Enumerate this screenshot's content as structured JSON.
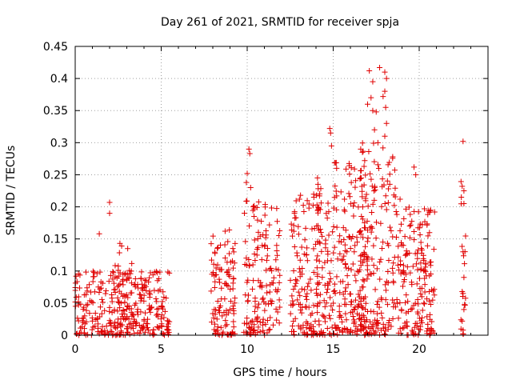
{
  "chart_data": {
    "type": "scatter",
    "title": "Day 261 of 2021, SRMTID for receiver spja",
    "xlabel": "GPS time / hours",
    "ylabel": "SRMTID / TECUs",
    "xlim": [
      0,
      24
    ],
    "ylim": [
      0,
      0.45
    ],
    "x_ticks": [
      0,
      5,
      10,
      15,
      20
    ],
    "x_tick_labels": [
      "0",
      "5",
      "10",
      "15",
      "20"
    ],
    "y_ticks": [
      0,
      0.05,
      0.1,
      0.15,
      0.2,
      0.25,
      0.3,
      0.35,
      0.4,
      0.45
    ],
    "y_tick_labels": [
      "0",
      "0.05",
      "0.1",
      "0.15",
      "0.2",
      "0.25",
      "0.3",
      "0.35",
      "0.4",
      "0.45"
    ],
    "grid": true,
    "marker": "+",
    "color": "#e00000",
    "clusters": [
      {
        "x": [
          0,
          5.5
        ],
        "ymax": 0.1,
        "n": 300
      },
      {
        "x": [
          2.0,
          3.5
        ],
        "ymax": 0.145,
        "n": 55
      },
      {
        "x": [
          7.9,
          9.3
        ],
        "ymax": 0.165,
        "n": 110
      },
      {
        "x": [
          9.8,
          11.9
        ],
        "ymax": 0.21,
        "n": 150
      },
      {
        "x": [
          12.5,
          14.2
        ],
        "ymax": 0.22,
        "n": 130
      },
      {
        "x": [
          14.0,
          17.0
        ],
        "ymax": 0.27,
        "n": 260
      },
      {
        "x": [
          16.5,
          19.0
        ],
        "ymax": 0.3,
        "n": 190
      },
      {
        "x": [
          18.8,
          20.9
        ],
        "ymax": 0.2,
        "n": 160
      },
      {
        "x": [
          22.4,
          22.7
        ],
        "ymax": 0.24,
        "n": 16
      }
    ],
    "highlights": [
      {
        "x": 0.05,
        "y": 0.092
      },
      {
        "x": 1.4,
        "y": 0.158
      },
      {
        "x": 2.0,
        "y": 0.207
      },
      {
        "x": 2.0,
        "y": 0.19
      },
      {
        "x": 2.6,
        "y": 0.143
      },
      {
        "x": 10.1,
        "y": 0.29
      },
      {
        "x": 10.15,
        "y": 0.283
      },
      {
        "x": 10.0,
        "y": 0.252
      },
      {
        "x": 9.95,
        "y": 0.238
      },
      {
        "x": 10.2,
        "y": 0.23
      },
      {
        "x": 10.35,
        "y": 0.2
      },
      {
        "x": 13.1,
        "y": 0.218
      },
      {
        "x": 14.8,
        "y": 0.322
      },
      {
        "x": 14.85,
        "y": 0.315
      },
      {
        "x": 14.9,
        "y": 0.295
      },
      {
        "x": 15.2,
        "y": 0.26
      },
      {
        "x": 16.6,
        "y": 0.29
      },
      {
        "x": 16.7,
        "y": 0.285
      },
      {
        "x": 17.1,
        "y": 0.412
      },
      {
        "x": 17.3,
        "y": 0.395
      },
      {
        "x": 17.2,
        "y": 0.37
      },
      {
        "x": 17.0,
        "y": 0.36
      },
      {
        "x": 17.5,
        "y": 0.348
      },
      {
        "x": 17.4,
        "y": 0.32
      },
      {
        "x": 17.6,
        "y": 0.3
      },
      {
        "x": 17.7,
        "y": 0.417
      },
      {
        "x": 18.0,
        "y": 0.41
      },
      {
        "x": 18.1,
        "y": 0.4
      },
      {
        "x": 18.0,
        "y": 0.38
      },
      {
        "x": 17.9,
        "y": 0.372
      },
      {
        "x": 18.05,
        "y": 0.355
      },
      {
        "x": 18.1,
        "y": 0.33
      },
      {
        "x": 18.0,
        "y": 0.31
      },
      {
        "x": 17.3,
        "y": 0.35
      },
      {
        "x": 19.7,
        "y": 0.262
      },
      {
        "x": 19.8,
        "y": 0.25
      },
      {
        "x": 20.5,
        "y": 0.188
      },
      {
        "x": 22.55,
        "y": 0.302
      },
      {
        "x": 22.5,
        "y": 0.232
      },
      {
        "x": 22.6,
        "y": 0.225
      },
      {
        "x": 22.45,
        "y": 0.215
      },
      {
        "x": 22.6,
        "y": 0.205
      },
      {
        "x": 22.55,
        "y": 0.13
      },
      {
        "x": 22.6,
        "y": 0.09
      },
      {
        "x": 22.5,
        "y": 0.068
      },
      {
        "x": 22.55,
        "y": 0.065
      },
      {
        "x": 22.6,
        "y": 0.04
      },
      {
        "x": 22.5,
        "y": 0.022
      },
      {
        "x": 22.55,
        "y": 0.008
      }
    ]
  }
}
